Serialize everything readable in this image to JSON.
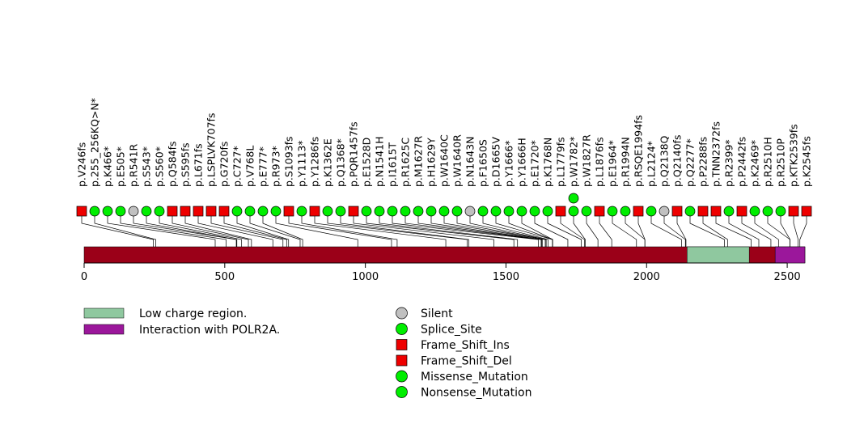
{
  "chart_data": {
    "type": "lollipop",
    "protein_length": 2563,
    "xlim": [
      0,
      2563
    ],
    "x_ticks": [
      0,
      500,
      1000,
      1500,
      2000,
      2500
    ],
    "domains": [
      {
        "name": "Low charge region.",
        "start": 2144,
        "end": 2365,
        "color": "#8fc89f"
      },
      {
        "name": "Interaction with POLR2A.",
        "start": 2457,
        "end": 2563,
        "color": "#9b179b"
      }
    ],
    "protein_color": "#9b0018",
    "mutation_legend": [
      {
        "label": "Silent",
        "shape": "circle",
        "color": "#c0c0c0"
      },
      {
        "label": "Splice_Site",
        "shape": "circle",
        "color": "#00ee00"
      },
      {
        "label": "Frame_Shift_Ins",
        "shape": "square",
        "color": "#ee0000"
      },
      {
        "label": "Frame_Shift_Del",
        "shape": "square",
        "color": "#ee0000"
      },
      {
        "label": "Missense_Mutation",
        "shape": "circle",
        "color": "#00ee00"
      },
      {
        "label": "Nonsense_Mutation",
        "shape": "circle",
        "color": "#00ee00"
      }
    ],
    "mutations": [
      {
        "label": "p.V246fs",
        "pos": 246,
        "type": "Frame_Shift_Del",
        "count": 1
      },
      {
        "label": "p.255_256KQ>N*",
        "pos": 255,
        "type": "Nonsense_Mutation",
        "count": 1
      },
      {
        "label": "p.K466*",
        "pos": 466,
        "type": "Nonsense_Mutation",
        "count": 1
      },
      {
        "label": "p.E505*",
        "pos": 505,
        "type": "Nonsense_Mutation",
        "count": 1
      },
      {
        "label": "p.R541R",
        "pos": 541,
        "type": "Silent",
        "count": 1
      },
      {
        "label": "p.S543*",
        "pos": 543,
        "type": "Nonsense_Mutation",
        "count": 1
      },
      {
        "label": "p.S560*",
        "pos": 560,
        "type": "Nonsense_Mutation",
        "count": 1
      },
      {
        "label": "p.Q584fs",
        "pos": 584,
        "type": "Frame_Shift_Del",
        "count": 1
      },
      {
        "label": "p.S595fs",
        "pos": 595,
        "type": "Frame_Shift_Del",
        "count": 1
      },
      {
        "label": "p.L671fs",
        "pos": 671,
        "type": "Frame_Shift_Del",
        "count": 1
      },
      {
        "label": "p.LSPLVK707fs",
        "pos": 707,
        "type": "Frame_Shift_Del",
        "count": 1
      },
      {
        "label": "p.G720fs",
        "pos": 720,
        "type": "Frame_Shift_Ins",
        "count": 1
      },
      {
        "label": "p.C727*",
        "pos": 727,
        "type": "Nonsense_Mutation",
        "count": 1
      },
      {
        "label": "p.V768L",
        "pos": 768,
        "type": "Missense_Mutation",
        "count": 1
      },
      {
        "label": "p.E777*",
        "pos": 777,
        "type": "Nonsense_Mutation",
        "count": 1
      },
      {
        "label": "p.R973*",
        "pos": 973,
        "type": "Nonsense_Mutation",
        "count": 1
      },
      {
        "label": "p.S1093fs",
        "pos": 1093,
        "type": "Frame_Shift_Del",
        "count": 1
      },
      {
        "label": "p.Y1113*",
        "pos": 1113,
        "type": "Nonsense_Mutation",
        "count": 1
      },
      {
        "label": "p.Y1286fs",
        "pos": 1286,
        "type": "Frame_Shift_Del",
        "count": 1
      },
      {
        "label": "p.K1362E",
        "pos": 1362,
        "type": "Missense_Mutation",
        "count": 1
      },
      {
        "label": "p.Q1368*",
        "pos": 1368,
        "type": "Nonsense_Mutation",
        "count": 1
      },
      {
        "label": "p.PQR1457fs",
        "pos": 1457,
        "type": "Frame_Shift_Del",
        "count": 1
      },
      {
        "label": "p.E1528D",
        "pos": 1528,
        "type": "Missense_Mutation",
        "count": 1
      },
      {
        "label": "p.N1541H",
        "pos": 1541,
        "type": "Missense_Mutation",
        "count": 1
      },
      {
        "label": "p.I1615T",
        "pos": 1615,
        "type": "Missense_Mutation",
        "count": 1
      },
      {
        "label": "p.R1625C",
        "pos": 1625,
        "type": "Missense_Mutation",
        "count": 1
      },
      {
        "label": "p.M1627R",
        "pos": 1627,
        "type": "Missense_Mutation",
        "count": 1
      },
      {
        "label": "p.H1629Y",
        "pos": 1629,
        "type": "Missense_Mutation",
        "count": 1
      },
      {
        "label": "p.W1640C",
        "pos": 1640,
        "type": "Missense_Mutation",
        "count": 1
      },
      {
        "label": "p.W1640R",
        "pos": 1640,
        "type": "Missense_Mutation",
        "count": 1
      },
      {
        "label": "p.N1643N",
        "pos": 1643,
        "type": "Silent",
        "count": 1
      },
      {
        "label": "p.F1650S",
        "pos": 1650,
        "type": "Missense_Mutation",
        "count": 1
      },
      {
        "label": "p.D1665V",
        "pos": 1665,
        "type": "Missense_Mutation",
        "count": 1
      },
      {
        "label": "p.Y1666*",
        "pos": 1666,
        "type": "Nonsense_Mutation",
        "count": 1
      },
      {
        "label": "p.Y1666H",
        "pos": 1666,
        "type": "Missense_Mutation",
        "count": 1
      },
      {
        "label": "p.E1720*",
        "pos": 1720,
        "type": "Nonsense_Mutation",
        "count": 1
      },
      {
        "label": "p.K1768N",
        "pos": 1768,
        "type": "Missense_Mutation",
        "count": 1
      },
      {
        "label": "p.L1779fs",
        "pos": 1779,
        "type": "Frame_Shift_Del",
        "count": 1
      },
      {
        "label": "p.W1782*",
        "pos": 1782,
        "type": "Nonsense_Mutation",
        "count": 2
      },
      {
        "label": "p.W1827R",
        "pos": 1827,
        "type": "Missense_Mutation",
        "count": 1
      },
      {
        "label": "p.L1876fs",
        "pos": 1876,
        "type": "Frame_Shift_Del",
        "count": 1
      },
      {
        "label": "p.E1964*",
        "pos": 1964,
        "type": "Nonsense_Mutation",
        "count": 1
      },
      {
        "label": "p.R1994N",
        "pos": 1994,
        "type": "Missense_Mutation",
        "count": 1
      },
      {
        "label": "p.RSQE1994fs",
        "pos": 1994,
        "type": "Frame_Shift_Del",
        "count": 1
      },
      {
        "label": "p.L2124*",
        "pos": 2124,
        "type": "Nonsense_Mutation",
        "count": 1
      },
      {
        "label": "p.Q2138Q",
        "pos": 2138,
        "type": "Silent",
        "count": 1
      },
      {
        "label": "p.Q2140fs",
        "pos": 2140,
        "type": "Frame_Shift_Del",
        "count": 1
      },
      {
        "label": "p.Q2277*",
        "pos": 2277,
        "type": "Nonsense_Mutation",
        "count": 1
      },
      {
        "label": "p.P2288fs",
        "pos": 2288,
        "type": "Frame_Shift_Del",
        "count": 1
      },
      {
        "label": "p.TNN2372fs",
        "pos": 2372,
        "type": "Frame_Shift_Del",
        "count": 1
      },
      {
        "label": "p.R2399*",
        "pos": 2399,
        "type": "Nonsense_Mutation",
        "count": 1
      },
      {
        "label": "p.P2442fs",
        "pos": 2442,
        "type": "Frame_Shift_Del",
        "count": 1
      },
      {
        "label": "p.K2469*",
        "pos": 2469,
        "type": "Nonsense_Mutation",
        "count": 1
      },
      {
        "label": "p.R2510H",
        "pos": 2510,
        "type": "Missense_Mutation",
        "count": 1
      },
      {
        "label": "p.R2510P",
        "pos": 2510,
        "type": "Missense_Mutation",
        "count": 1
      },
      {
        "label": "p.KTK2539fs",
        "pos": 2539,
        "type": "Frame_Shift_Del",
        "count": 1
      },
      {
        "label": "p.K2545fs",
        "pos": 2545,
        "type": "Frame_Shift_Del",
        "count": 1
      }
    ]
  }
}
